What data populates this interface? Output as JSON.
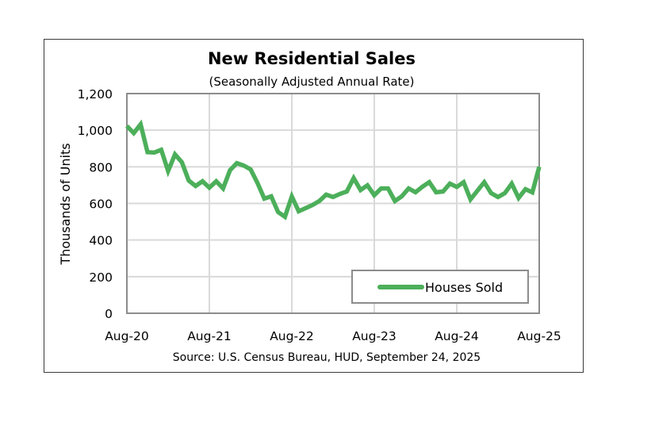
{
  "chart_data": {
    "type": "line",
    "title": "New Residential Sales",
    "subtitle": "(Seasonally Adjusted Annual Rate)",
    "xlabel": "",
    "ylabel": "Thousands of Units",
    "source": "Source:  U.S. Census Bureau, HUD, September 24, 2025",
    "ylim": [
      0,
      1200
    ],
    "yticks": [
      0,
      200,
      400,
      600,
      800,
      1000,
      1200
    ],
    "ytick_labels": [
      "0",
      "200",
      "400",
      "600",
      "800",
      "1,000",
      "1,200"
    ],
    "xtick_labels": [
      "Aug-20",
      "Aug-21",
      "Aug-22",
      "Aug-23",
      "Aug-24",
      "Aug-25"
    ],
    "x_start": "Aug-20",
    "x_end": "Aug-25",
    "x_frequency": "monthly",
    "grid": true,
    "legend_position": "bottom-right",
    "series": [
      {
        "name": "Houses Sold",
        "color": "#4caf5a",
        "values": [
          1023,
          984,
          1032,
          880,
          878,
          893,
          777,
          868,
          825,
          725,
          695,
          721,
          686,
          721,
          682,
          781,
          820,
          807,
          786,
          712,
          626,
          639,
          553,
          527,
          638,
          557,
          574,
          591,
          613,
          648,
          635,
          652,
          665,
          738,
          673,
          699,
          645,
          682,
          682,
          613,
          639,
          682,
          661,
          691,
          716,
          661,
          665,
          708,
          690,
          716,
          622,
          669,
          716,
          656,
          635,
          656,
          708,
          630,
          678,
          660,
          800
        ]
      }
    ]
  }
}
